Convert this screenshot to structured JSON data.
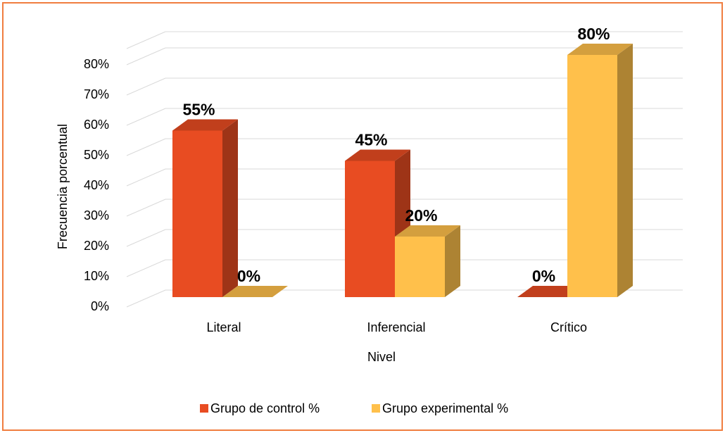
{
  "chart_data": {
    "type": "bar3d",
    "categories": [
      "Literal",
      "Inferencial",
      "Crítico"
    ],
    "series": [
      {
        "name": "Grupo de control %",
        "color": "#e84c22",
        "values": [
          55,
          45,
          0
        ],
        "value_labels": [
          "55%",
          "45%",
          "0%"
        ]
      },
      {
        "name": "Grupo experimental %",
        "color": "#ffc04b",
        "values": [
          0,
          20,
          80
        ],
        "value_labels": [
          "0%",
          "20%",
          "80%"
        ]
      }
    ],
    "ylim": [
      0,
      90
    ],
    "yticks": [
      {
        "value": 0,
        "label": "0%"
      },
      {
        "value": 10,
        "label": "10%"
      },
      {
        "value": 20,
        "label": "20%"
      },
      {
        "value": 30,
        "label": "30%"
      },
      {
        "value": 40,
        "label": "40%"
      },
      {
        "value": 50,
        "label": "50%"
      },
      {
        "value": 60,
        "label": "60%"
      },
      {
        "value": 70,
        "label": "70%"
      },
      {
        "value": 80,
        "label": "80%"
      }
    ],
    "ylabel": "Frecuencia porcentual",
    "xlabel": "Nivel",
    "grid": true
  }
}
